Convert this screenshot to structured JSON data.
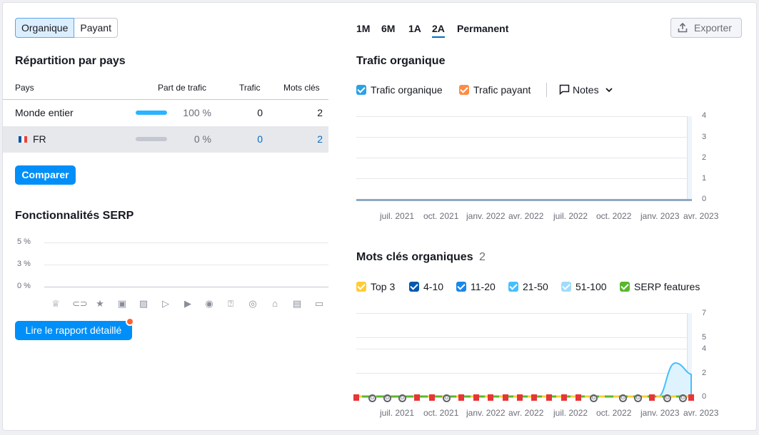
{
  "tabs": {
    "organic": "Organique",
    "paid": "Payant"
  },
  "periods": [
    "1M",
    "6M",
    "1A",
    "2A",
    "Permanent"
  ],
  "selected_period": "2A",
  "export_label": "Exporter",
  "country": {
    "title": "Répartition par pays",
    "headers": {
      "country": "Pays",
      "share": "Part de trafic",
      "traffic": "Trafic",
      "keywords": "Mots clés"
    },
    "rows": [
      {
        "name": "Monde entier",
        "share": "100 %",
        "traffic": "0",
        "keywords": "2",
        "bar_fill": 1.0
      },
      {
        "name": "FR",
        "share": "0 %",
        "traffic": "0",
        "keywords": "2",
        "bar_fill": 0.0
      }
    ],
    "compare_label": "Comparer"
  },
  "serp": {
    "title": "Fonctionnalités SERP",
    "y_ticks": [
      "5 %",
      "3 %",
      "0 %"
    ],
    "icons": [
      "crown-icon",
      "link-icon",
      "star-icon",
      "image-icon",
      "image-pack-icon",
      "video-icon",
      "video-carousel-icon",
      "play-icon",
      "faq-icon",
      "local-pack-icon",
      "knowledge-icon",
      "news-icon",
      "jobs-icon"
    ],
    "report_label": "Lire le rapport détaillé"
  },
  "organic_traffic": {
    "title": "Trafic organique",
    "legend": {
      "organic": "Trafic organique",
      "paid": "Trafic payant",
      "notes": "Notes"
    },
    "y_ticks": [
      "4",
      "3",
      "2",
      "1",
      "0"
    ],
    "x_ticks": [
      "juil. 2021",
      "oct. 2021",
      "janv. 2022",
      "avr. 2022",
      "juil. 2022",
      "oct. 2022",
      "janv. 2023",
      "avr. 2023"
    ]
  },
  "organic_keywords": {
    "title": "Mots clés organiques",
    "count": "2",
    "legend": [
      "Top 3",
      "4-10",
      "11-20",
      "21-50",
      "51-100",
      "SERP features"
    ],
    "y_ticks": [
      "7",
      "5",
      "4",
      "2",
      "0"
    ],
    "x_ticks": [
      "juil. 2021",
      "oct. 2021",
      "janv. 2022",
      "avr. 2022",
      "juil. 2022",
      "oct. 2022",
      "janv. 2023",
      "avr. 2023"
    ]
  },
  "colors": {
    "accent": "#008ff8",
    "organic": "#2ca1e8",
    "paid": "#ff8c43",
    "top3": "#ffcc33",
    "p4_10": "#0058b0",
    "p11_20": "#1887e8",
    "p21_50": "#45bfff",
    "p51_100": "#9fdbff",
    "serp_features": "#59b72d"
  }
}
